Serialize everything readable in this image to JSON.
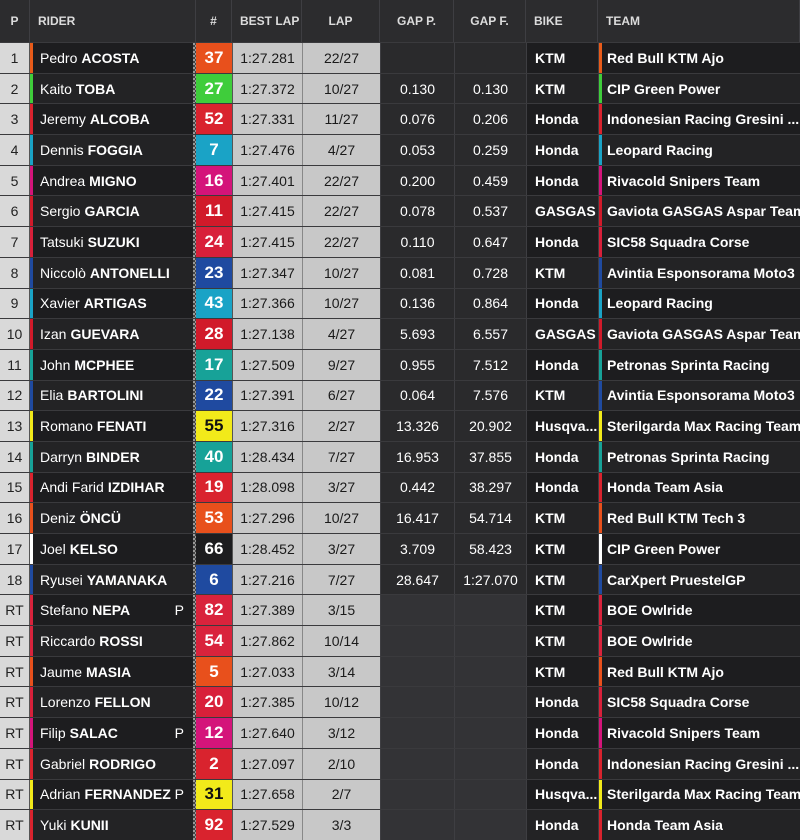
{
  "headers": {
    "pos": "P",
    "rider": "RIDER",
    "num": "#",
    "best_lap": "BEST LAP",
    "lap": "LAP",
    "gap_p": "GAP P.",
    "gap_f": "GAP F.",
    "bike": "BIKE",
    "team": "TEAM"
  },
  "rows": [
    {
      "pos": "1",
      "first": "Pedro",
      "last": "ACOSTA",
      "num": "37",
      "best": "1:27.281",
      "lap": "22/27",
      "gap_p": "",
      "gap_f": "",
      "bike": "KTM",
      "team": "Red Bull KTM Ajo",
      "num_color": "#e8501c",
      "team_color": "#e85b1a",
      "pit": ""
    },
    {
      "pos": "2",
      "first": "Kaito",
      "last": "TOBA",
      "num": "27",
      "best": "1:27.372",
      "lap": "10/27",
      "gap_p": "0.130",
      "gap_f": "0.130",
      "bike": "KTM",
      "team": "CIP Green Power",
      "num_color": "#3fcd3b",
      "team_color": "#3fcd3b",
      "pit": ""
    },
    {
      "pos": "3",
      "first": "Jeremy",
      "last": "ALCOBA",
      "num": "52",
      "best": "1:27.331",
      "lap": "11/27",
      "gap_p": "0.076",
      "gap_f": "0.206",
      "bike": "Honda",
      "team": "Indonesian Racing Gresini ...",
      "num_color": "#d9232e",
      "team_color": "#d9232e",
      "pit": ""
    },
    {
      "pos": "4",
      "first": "Dennis",
      "last": "FOGGIA",
      "num": "7",
      "best": "1:27.476",
      "lap": "4/27",
      "gap_p": "0.053",
      "gap_f": "0.259",
      "bike": "Honda",
      "team": "Leopard Racing",
      "num_color": "#1aa3c6",
      "team_color": "#1aa3c6",
      "pit": ""
    },
    {
      "pos": "5",
      "first": "Andrea",
      "last": "MIGNO",
      "num": "16",
      "best": "1:27.401",
      "lap": "22/27",
      "gap_p": "0.200",
      "gap_f": "0.459",
      "bike": "Honda",
      "team": "Rivacold Snipers Team",
      "num_color": "#d4147a",
      "team_color": "#d4147a",
      "pit": ""
    },
    {
      "pos": "6",
      "first": "Sergio",
      "last": "GARCIA",
      "num": "11",
      "best": "1:27.415",
      "lap": "22/27",
      "gap_p": "0.078",
      "gap_f": "0.537",
      "bike": "GASGAS",
      "team": "Gaviota GASGAS Aspar Team",
      "num_color": "#d11a2a",
      "team_color": "#d11a2a",
      "pit": ""
    },
    {
      "pos": "7",
      "first": "Tatsuki",
      "last": "SUZUKI",
      "num": "24",
      "best": "1:27.415",
      "lap": "22/27",
      "gap_p": "0.110",
      "gap_f": "0.647",
      "bike": "Honda",
      "team": "SIC58 Squadra Corse",
      "num_color": "#d8203a",
      "team_color": "#d8203a",
      "pit": ""
    },
    {
      "pos": "8",
      "first": "Niccolò",
      "last": "ANTONELLI",
      "num": "23",
      "best": "1:27.347",
      "lap": "10/27",
      "gap_p": "0.081",
      "gap_f": "0.728",
      "bike": "KTM",
      "team": "Avintia Esponsorama Moto3",
      "num_color": "#1f4aa0",
      "team_color": "#1f4aa0",
      "pit": ""
    },
    {
      "pos": "9",
      "first": "Xavier",
      "last": "ARTIGAS",
      "num": "43",
      "best": "1:27.366",
      "lap": "10/27",
      "gap_p": "0.136",
      "gap_f": "0.864",
      "bike": "Honda",
      "team": "Leopard Racing",
      "num_color": "#1aa3c6",
      "team_color": "#1aa3c6",
      "pit": ""
    },
    {
      "pos": "10",
      "first": "Izan",
      "last": "GUEVARA",
      "num": "28",
      "best": "1:27.138",
      "lap": "4/27",
      "gap_p": "5.693",
      "gap_f": "6.557",
      "bike": "GASGAS",
      "team": "Gaviota GASGAS Aspar Team",
      "num_color": "#d11a2a",
      "team_color": "#d11a2a",
      "pit": ""
    },
    {
      "pos": "11",
      "first": "John",
      "last": "MCPHEE",
      "num": "17",
      "best": "1:27.509",
      "lap": "9/27",
      "gap_p": "0.955",
      "gap_f": "7.512",
      "bike": "Honda",
      "team": "Petronas Sprinta Racing",
      "num_color": "#17a298",
      "team_color": "#17a298",
      "pit": ""
    },
    {
      "pos": "12",
      "first": "Elia",
      "last": "BARTOLINI",
      "num": "22",
      "best": "1:27.391",
      "lap": "6/27",
      "gap_p": "0.064",
      "gap_f": "7.576",
      "bike": "KTM",
      "team": "Avintia Esponsorama Moto3",
      "num_color": "#1f4aa0",
      "team_color": "#1f4aa0",
      "pit": ""
    },
    {
      "pos": "13",
      "first": "Romano",
      "last": "FENATI",
      "num": "55",
      "best": "1:27.316",
      "lap": "2/27",
      "gap_p": "13.326",
      "gap_f": "20.902",
      "bike": "Husqva...",
      "team": "Sterilgarda Max Racing Team",
      "num_color": "#f2ea1a",
      "team_color": "#f2ea1a",
      "pit": "",
      "dark": true
    },
    {
      "pos": "14",
      "first": "Darryn",
      "last": "BINDER",
      "num": "40",
      "best": "1:28.434",
      "lap": "7/27",
      "gap_p": "16.953",
      "gap_f": "37.855",
      "bike": "Honda",
      "team": "Petronas Sprinta Racing",
      "num_color": "#17a298",
      "team_color": "#17a298",
      "pit": ""
    },
    {
      "pos": "15",
      "first": "Andi Farid",
      "last": "IZDIHAR",
      "num": "19",
      "best": "1:28.098",
      "lap": "3/27",
      "gap_p": "0.442",
      "gap_f": "38.297",
      "bike": "Honda",
      "team": "Honda Team Asia",
      "num_color": "#d9232e",
      "team_color": "#d9232e",
      "pit": ""
    },
    {
      "pos": "16",
      "first": "Deniz",
      "last": "ÖNCÜ",
      "num": "53",
      "best": "1:27.296",
      "lap": "10/27",
      "gap_p": "16.417",
      "gap_f": "54.714",
      "bike": "KTM",
      "team": "Red Bull KTM Tech 3",
      "num_color": "#e8501c",
      "team_color": "#e8501c",
      "pit": ""
    },
    {
      "pos": "17",
      "first": "Joel",
      "last": "KELSO",
      "num": "66",
      "best": "1:28.452",
      "lap": "3/27",
      "gap_p": "3.709",
      "gap_f": "58.423",
      "bike": "KTM",
      "team": "CIP Green Power",
      "num_color": "#1d1d1f",
      "team_color": "#ffffff",
      "pit": ""
    },
    {
      "pos": "18",
      "first": "Ryusei",
      "last": "YAMANAKA",
      "num": "6",
      "best": "1:27.216",
      "lap": "7/27",
      "gap_p": "28.647",
      "gap_f": "1:27.070",
      "bike": "KTM",
      "team": "CarXpert PruestelGP",
      "num_color": "#1f4aa0",
      "team_color": "#1f4aa0",
      "pit": ""
    },
    {
      "pos": "RT",
      "first": "Stefano",
      "last": "NEPA",
      "num": "82",
      "best": "1:27.389",
      "lap": "3/15",
      "gap_p": "",
      "gap_f": "",
      "bike": "KTM",
      "team": "BOE Owlride",
      "num_color": "#d9233c",
      "team_color": "#d9233c",
      "pit": "P"
    },
    {
      "pos": "RT",
      "first": "Riccardo",
      "last": "ROSSI",
      "num": "54",
      "best": "1:27.862",
      "lap": "10/14",
      "gap_p": "",
      "gap_f": "",
      "bike": "KTM",
      "team": "BOE Owlride",
      "num_color": "#d9233c",
      "team_color": "#d9233c",
      "pit": ""
    },
    {
      "pos": "RT",
      "first": "Jaume",
      "last": "MASIA",
      "num": "5",
      "best": "1:27.033",
      "lap": "3/14",
      "gap_p": "",
      "gap_f": "",
      "bike": "KTM",
      "team": "Red Bull KTM Ajo",
      "num_color": "#e8501c",
      "team_color": "#e8501c",
      "pit": ""
    },
    {
      "pos": "RT",
      "first": "Lorenzo",
      "last": "FELLON",
      "num": "20",
      "best": "1:27.385",
      "lap": "10/12",
      "gap_p": "",
      "gap_f": "",
      "bike": "Honda",
      "team": "SIC58 Squadra Corse",
      "num_color": "#d8203a",
      "team_color": "#d8203a",
      "pit": ""
    },
    {
      "pos": "RT",
      "first": "Filip",
      "last": "SALAC",
      "num": "12",
      "best": "1:27.640",
      "lap": "3/12",
      "gap_p": "",
      "gap_f": "",
      "bike": "Honda",
      "team": "Rivacold Snipers Team",
      "num_color": "#d4147a",
      "team_color": "#d4147a",
      "pit": "P"
    },
    {
      "pos": "RT",
      "first": "Gabriel",
      "last": "RODRIGO",
      "num": "2",
      "best": "1:27.097",
      "lap": "2/10",
      "gap_p": "",
      "gap_f": "",
      "bike": "Honda",
      "team": "Indonesian Racing Gresini ...",
      "num_color": "#d9232e",
      "team_color": "#d9232e",
      "pit": ""
    },
    {
      "pos": "RT",
      "first": "Adrian",
      "last": "FERNANDEZ",
      "num": "31",
      "best": "1:27.658",
      "lap": "2/7",
      "gap_p": "",
      "gap_f": "",
      "bike": "Husqva...",
      "team": "Sterilgarda Max Racing Team",
      "num_color": "#f2ea1a",
      "team_color": "#f2ea1a",
      "pit": "P",
      "dark": true
    },
    {
      "pos": "RT",
      "first": "Yuki",
      "last": "KUNII",
      "num": "92",
      "best": "1:27.529",
      "lap": "3/3",
      "gap_p": "",
      "gap_f": "",
      "bike": "Honda",
      "team": "Honda Team Asia",
      "num_color": "#d9232e",
      "team_color": "#d9232e",
      "pit": ""
    }
  ]
}
